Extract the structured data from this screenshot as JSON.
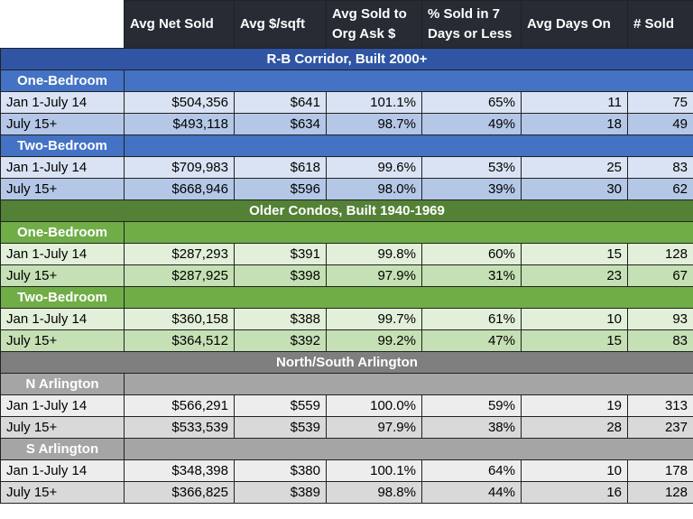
{
  "chart_data": {
    "type": "table",
    "columns": [
      "",
      "Avg Net Sold",
      "Avg $/sqft",
      "Avg Sold to Org Ask $",
      "% Sold in 7 Days or Less",
      "Avg Days On",
      "# Sold"
    ],
    "sections": [
      {
        "title": "R-B Corridor, Built 2000+",
        "color": "#2f55a4",
        "groups": [
          {
            "name": "One-Bedroom",
            "rows": [
              {
                "period": "Jan 1-July 14",
                "avg_net_sold": "$504,356",
                "avg_per_sqft": "$641",
                "sold_to_ask": "101.1%",
                "pct_7_days": "65%",
                "avg_days": "11",
                "num_sold": "75"
              },
              {
                "period": "July 15+",
                "avg_net_sold": "$493,118",
                "avg_per_sqft": "$634",
                "sold_to_ask": "98.7%",
                "pct_7_days": "49%",
                "avg_days": "18",
                "num_sold": "49"
              }
            ]
          },
          {
            "name": "Two-Bedroom",
            "rows": [
              {
                "period": "Jan 1-July 14",
                "avg_net_sold": "$709,983",
                "avg_per_sqft": "$618",
                "sold_to_ask": "99.6%",
                "pct_7_days": "53%",
                "avg_days": "25",
                "num_sold": "83"
              },
              {
                "period": "July 15+",
                "avg_net_sold": "$668,946",
                "avg_per_sqft": "$596",
                "sold_to_ask": "98.0%",
                "pct_7_days": "39%",
                "avg_days": "30",
                "num_sold": "62"
              }
            ]
          }
        ]
      },
      {
        "title": "Older Condos, Built 1940-1969",
        "color": "#538135",
        "groups": [
          {
            "name": "One-Bedroom",
            "rows": [
              {
                "period": "Jan 1-July 14",
                "avg_net_sold": "$287,293",
                "avg_per_sqft": "$391",
                "sold_to_ask": "99.8%",
                "pct_7_days": "60%",
                "avg_days": "15",
                "num_sold": "128"
              },
              {
                "period": "July 15+",
                "avg_net_sold": "$287,925",
                "avg_per_sqft": "$398",
                "sold_to_ask": "97.9%",
                "pct_7_days": "31%",
                "avg_days": "23",
                "num_sold": "67"
              }
            ]
          },
          {
            "name": "Two-Bedroom",
            "rows": [
              {
                "period": "Jan 1-July 14",
                "avg_net_sold": "$360,158",
                "avg_per_sqft": "$388",
                "sold_to_ask": "99.7%",
                "pct_7_days": "61%",
                "avg_days": "10",
                "num_sold": "93"
              },
              {
                "period": "July 15+",
                "avg_net_sold": "$364,512",
                "avg_per_sqft": "$392",
                "sold_to_ask": "99.2%",
                "pct_7_days": "47%",
                "avg_days": "15",
                "num_sold": "83"
              }
            ]
          }
        ]
      },
      {
        "title": "North/South Arlington",
        "color": "#7f7f7f",
        "groups": [
          {
            "name": "N Arlington",
            "rows": [
              {
                "period": "Jan 1-July 14",
                "avg_net_sold": "$566,291",
                "avg_per_sqft": "$559",
                "sold_to_ask": "100.0%",
                "pct_7_days": "59%",
                "avg_days": "19",
                "num_sold": "313"
              },
              {
                "period": "July 15+",
                "avg_net_sold": "$533,539",
                "avg_per_sqft": "$539",
                "sold_to_ask": "97.9%",
                "pct_7_days": "38%",
                "avg_days": "28",
                "num_sold": "237"
              }
            ]
          },
          {
            "name": "S Arlington",
            "rows": [
              {
                "period": "Jan 1-July 14",
                "avg_net_sold": "$348,398",
                "avg_per_sqft": "$380",
                "sold_to_ask": "100.1%",
                "pct_7_days": "64%",
                "avg_days": "10",
                "num_sold": "178"
              },
              {
                "period": "July 15+",
                "avg_net_sold": "$366,825",
                "avg_per_sqft": "$389",
                "sold_to_ask": "98.8%",
                "pct_7_days": "44%",
                "avg_days": "16",
                "num_sold": "128"
              }
            ]
          }
        ]
      }
    ]
  }
}
